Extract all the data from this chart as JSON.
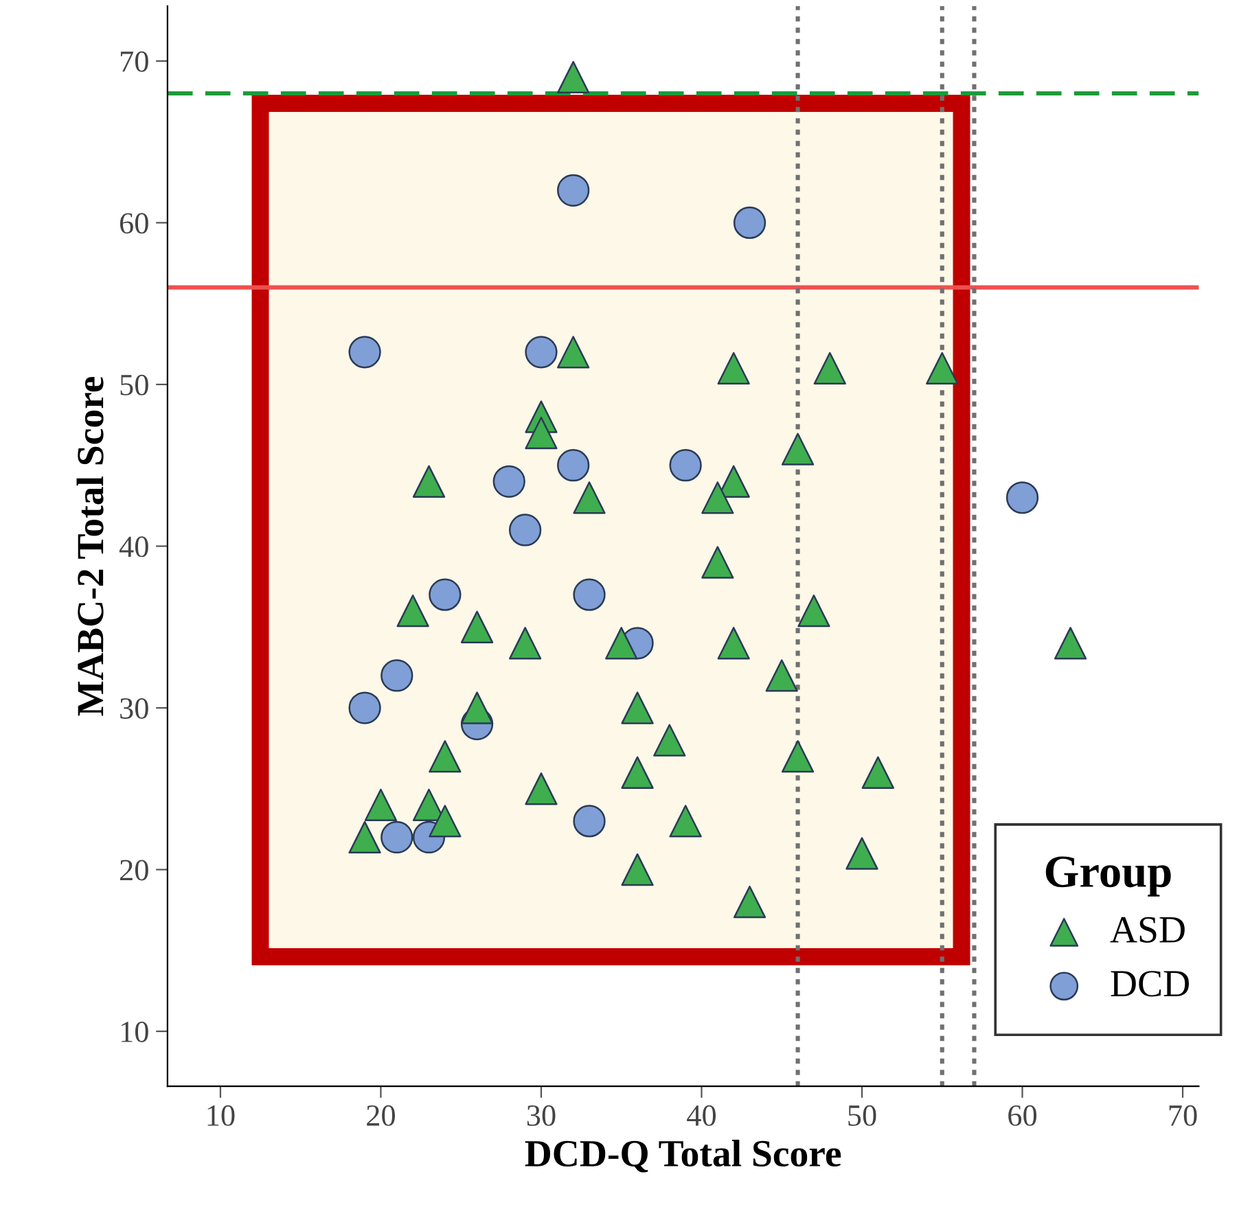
{
  "chart_data": {
    "type": "scatter",
    "xlabel": "DCD-Q Total Score",
    "ylabel": "MABC-2 Total Score",
    "legend_title": "Group",
    "legend": "bottom right",
    "grid": false,
    "xlim": [
      6.7,
      71
    ],
    "ylim": [
      6.6,
      73.4
    ],
    "xticks": [
      10,
      20,
      30,
      40,
      50,
      60,
      70
    ],
    "yticks": [
      10,
      20,
      30,
      40,
      50,
      60,
      70
    ],
    "ref_lines": [
      {
        "axis": "y",
        "value": 68,
        "label": null,
        "color": "#1e9a3a",
        "line_style": "dashed"
      },
      {
        "axis": "y",
        "value": 56,
        "label": null,
        "color": "#f05050",
        "line_style": "solid"
      },
      {
        "axis": "x",
        "value": 46,
        "label": null,
        "color": "#707070",
        "line_style": "dotted"
      },
      {
        "axis": "x",
        "value": 55,
        "label": null,
        "color": "#707070",
        "line_style": "dotted"
      },
      {
        "axis": "x",
        "value": 57,
        "label": null,
        "color": "#707070",
        "line_style": "dotted"
      }
    ],
    "series": [
      {
        "name": "ASD",
        "color": "#3fae4f",
        "marker": "triangle",
        "x": [
          32,
          32,
          30,
          30,
          42,
          48,
          55,
          46,
          23,
          42,
          41,
          33,
          41,
          22,
          47,
          26,
          29,
          35,
          42,
          63,
          45,
          36,
          26,
          38,
          24,
          46,
          36,
          51,
          30,
          20,
          23,
          24,
          39,
          19,
          50,
          36,
          43
        ],
        "values": [
          69,
          52,
          48,
          47,
          51,
          51,
          51,
          46,
          44,
          44,
          43,
          43,
          39,
          36,
          36,
          35,
          34,
          34,
          34,
          34,
          32,
          30,
          30,
          28,
          27,
          27,
          26,
          26,
          25,
          24,
          24,
          23,
          23,
          22,
          21,
          20,
          18
        ]
      },
      {
        "name": "DCD",
        "color": "#7f9fd6",
        "marker": "circle",
        "x": [
          32,
          43,
          19,
          30,
          32,
          39,
          28,
          60,
          29,
          24,
          33,
          36,
          21,
          19,
          26,
          21,
          23,
          33
        ],
        "values": [
          62,
          60,
          52,
          52,
          45,
          45,
          44,
          43,
          41,
          37,
          37,
          34,
          32,
          30,
          29,
          22,
          22,
          23
        ]
      }
    ]
  }
}
